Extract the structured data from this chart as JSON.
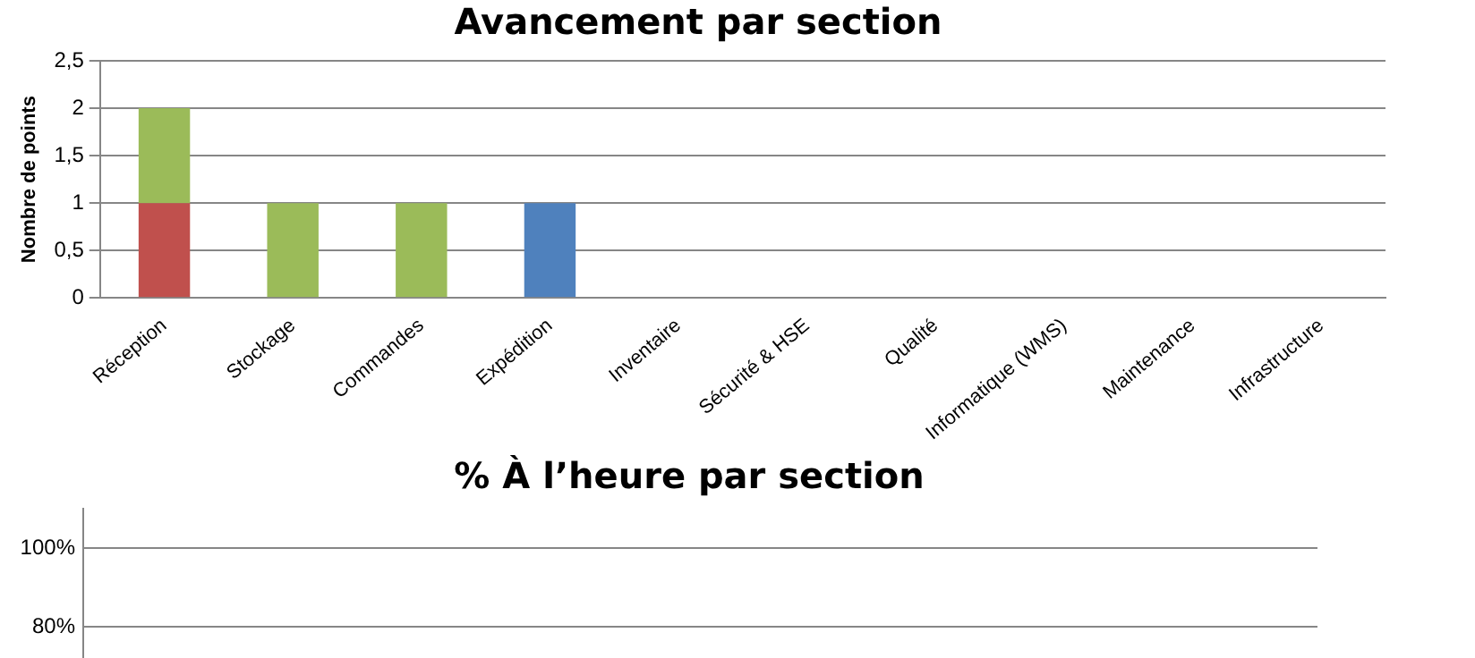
{
  "chart_data": [
    {
      "type": "bar",
      "title": "Avancement par section",
      "ylabel": "Nombre de points",
      "stacked": true,
      "categories": [
        "Réception",
        "Stockage",
        "Commandes",
        "Expédition",
        "Inventaire",
        "Sécurité & HSE",
        "Qualité",
        "Informatique (WMS)",
        "Maintenance",
        "Infrastructure"
      ],
      "series": [
        {
          "color": "#c0504d",
          "values": [
            1,
            null,
            null,
            null,
            null,
            null,
            null,
            null,
            null,
            null
          ]
        },
        {
          "color": "#9bbb59",
          "values": [
            1,
            1,
            1,
            null,
            null,
            null,
            null,
            null,
            null,
            null
          ]
        },
        {
          "color": "#4f81bd",
          "values": [
            null,
            null,
            null,
            1,
            null,
            null,
            null,
            null,
            null,
            null
          ]
        }
      ],
      "ylim": [
        0,
        2.5
      ],
      "yticks": [
        0,
        {
          "value": 0.5,
          "label": "0,5"
        },
        1,
        {
          "value": 1.5,
          "label": "1,5"
        },
        2,
        {
          "value": 2.5,
          "label": "2,5"
        }
      ],
      "grid": "y",
      "legend": false
    },
    {
      "type": "other",
      "title": "% À l’heure par section",
      "annotations": [
        "100%",
        "80%"
      ]
    }
  ]
}
